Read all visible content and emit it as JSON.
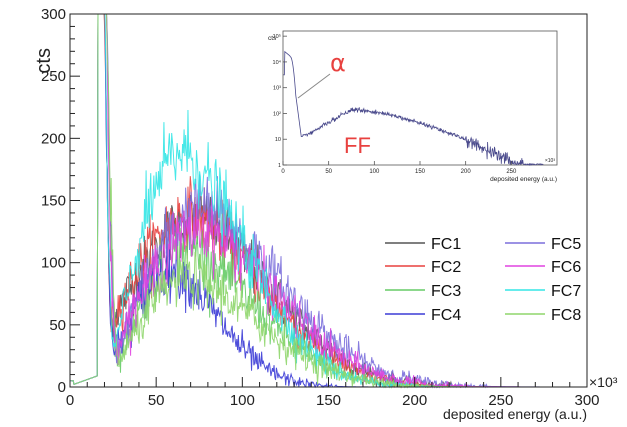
{
  "chart_data": [
    {
      "type": "line",
      "title": "",
      "xlabel": "deposited energy (a.u.)",
      "ylabel": "cts",
      "x_multiplier_label": "×10³",
      "xlim": [
        0,
        300
      ],
      "ylim": [
        0,
        300
      ],
      "x_ticks": [
        0,
        50,
        100,
        150,
        200,
        250,
        300
      ],
      "y_ticks": [
        0,
        50,
        100,
        150,
        200,
        250,
        300
      ],
      "grid": false,
      "legend_position": "right",
      "series": [
        {
          "name": "FC1",
          "color": "#555555",
          "peak_x": 75,
          "peak_y": 135,
          "valley_x": 25,
          "valley_y": 55,
          "rise_x": 20,
          "width_hi": 52,
          "end_x": 260
        },
        {
          "name": "FC2",
          "color": "#e8413f",
          "peak_x": 72,
          "peak_y": 140,
          "valley_x": 25,
          "valley_y": 55,
          "rise_x": 20,
          "width_hi": 50,
          "end_x": 250
        },
        {
          "name": "FC3",
          "color": "#66cc66",
          "peak_x": 70,
          "peak_y": 112,
          "valley_x": 28,
          "valley_y": 25,
          "rise_x": 21,
          "width_hi": 48,
          "end_x": 240
        },
        {
          "name": "FC4",
          "color": "#3b3bd6",
          "peak_x": 60,
          "peak_y": 95,
          "valley_x": 26,
          "valley_y": 28,
          "rise_x": 20,
          "width_hi": 33,
          "end_x": 170
        },
        {
          "name": "FC5",
          "color": "#7b6fdc",
          "peak_x": 78,
          "peak_y": 145,
          "valley_x": 28,
          "valley_y": 32,
          "rise_x": 21,
          "width_hi": 55,
          "end_x": 270
        },
        {
          "name": "FC6",
          "color": "#e044e0",
          "peak_x": 78,
          "peak_y": 128,
          "valley_x": 27,
          "valley_y": 35,
          "rise_x": 21,
          "width_hi": 52,
          "end_x": 260
        },
        {
          "name": "FC7",
          "color": "#33e6e6",
          "peak_x": 66,
          "peak_y": 190,
          "valley_x": 26,
          "valley_y": 30,
          "rise_x": 20,
          "width_hi": 45,
          "end_x": 220
        },
        {
          "name": "FC8",
          "color": "#8fd66b",
          "peak_x": 70,
          "peak_y": 88,
          "valley_x": 29,
          "valley_y": 22,
          "rise_x": 21,
          "width_hi": 50,
          "end_x": 240
        }
      ]
    },
    {
      "type": "line",
      "title": "",
      "xlabel": "deposited energy (a.u.)",
      "ylabel": "cts",
      "x_multiplier_label": "×10³",
      "xlim": [
        0,
        300
      ],
      "log_y": true,
      "y_ticks": [
        "1",
        "10",
        "10²",
        "10³",
        "10⁴",
        "10⁵"
      ],
      "x_ticks": [
        0,
        50,
        100,
        150,
        200,
        250
      ],
      "annotations": [
        {
          "text": "α",
          "color": "#e8413f"
        },
        {
          "text": "FF",
          "color": "#e8413f"
        }
      ],
      "series": [
        {
          "color": "#4a4a8c"
        }
      ]
    }
  ]
}
